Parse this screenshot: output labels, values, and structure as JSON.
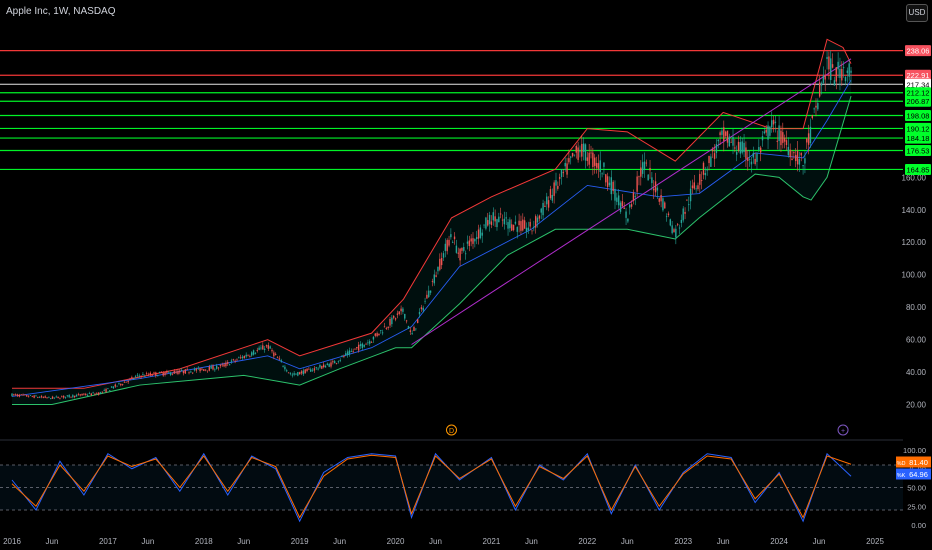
{
  "window": {
    "title": "Apple Inc, 1W, NASDAQ",
    "currency_button": "USD"
  },
  "colors": {
    "background": "#000000",
    "candle_up": "#26a69a",
    "candle_down": "#ef5350",
    "bb_upper": "#ff3b3b",
    "bb_lower": "#2ecc71",
    "bb_basis": "#2962ff",
    "trendline": "#b82fd6",
    "resistance": "#ff3b3b",
    "support": "#00ff2a",
    "stoch_k": "#2962ff",
    "stoch_d": "#ff6d00"
  },
  "events": [
    {
      "kind": "dividend",
      "label": "D",
      "date": "2020-08-01"
    },
    {
      "kind": "earnings",
      "label": "+",
      "date": "2024-09-20"
    }
  ],
  "chart_data": [
    {
      "type": "line",
      "title": "Apple Inc, 1W, NASDAQ",
      "ylim": [
        0,
        252
      ],
      "y_ticks": [
        "20.00",
        "40.00",
        "60.00",
        "80.00",
        "100.00",
        "120.00",
        "140.00",
        "160.00"
      ],
      "x_ticks": [
        "2016",
        "Jun",
        "2017",
        "Jun",
        "2018",
        "Jun",
        "2019",
        "Jun",
        "2020",
        "Jun",
        "2021",
        "Jun",
        "2022",
        "Jun",
        "2023",
        "Jun",
        "2024",
        "Jun",
        "2025"
      ],
      "x_tick_dates": [
        "2016-01",
        "2016-06",
        "2017-01",
        "2017-06",
        "2018-01",
        "2018-06",
        "2019-01",
        "2019-06",
        "2020-01",
        "2020-06",
        "2021-01",
        "2021-06",
        "2022-01",
        "2022-06",
        "2023-01",
        "2023-06",
        "2024-01",
        "2024-06",
        "2025-01"
      ],
      "series": [
        {
          "kind": "price",
          "x": [
            "2016-01",
            "2016-06",
            "2016-12",
            "2017-05",
            "2017-10",
            "2018-03",
            "2018-09",
            "2018-12",
            "2019-05",
            "2019-10",
            "2020-02",
            "2020-03",
            "2020-08",
            "2020-09",
            "2021-01",
            "2021-06",
            "2021-12",
            "2022-03",
            "2022-06",
            "2022-08",
            "2022-10",
            "2022-12",
            "2023-02",
            "2023-06",
            "2023-08",
            "2023-10",
            "2023-12",
            "2024-02",
            "2024-04",
            "2024-06",
            "2024-07",
            "2024-08",
            "2024-09",
            "2024-10"
          ],
          "y": [
            26,
            24,
            27,
            38,
            40,
            43,
            56,
            38,
            45,
            60,
            78,
            62,
            125,
            112,
            135,
            128,
            178,
            165,
            135,
            168,
            150,
            125,
            150,
            185,
            178,
            170,
            192,
            180,
            168,
            210,
            230,
            222,
            228,
            225
          ]
        },
        {
          "kind": "bollinger-upper",
          "x": [
            "2016-01",
            "2016-10",
            "2017-10",
            "2018-09",
            "2019-01",
            "2019-10",
            "2020-02",
            "2020-08",
            "2021-01",
            "2021-09",
            "2022-01",
            "2022-06",
            "2022-12",
            "2023-06",
            "2023-12",
            "2024-04",
            "2024-07",
            "2024-09",
            "2024-10"
          ],
          "y": [
            30,
            30,
            42,
            60,
            50,
            64,
            85,
            135,
            148,
            165,
            190,
            188,
            170,
            200,
            190,
            190,
            245,
            240,
            230
          ]
        },
        {
          "kind": "bollinger-lower",
          "x": [
            "2016-01",
            "2016-06",
            "2017-05",
            "2018-06",
            "2019-01",
            "2019-06",
            "2020-01",
            "2020-03",
            "2020-09",
            "2021-03",
            "2021-09",
            "2022-06",
            "2022-12",
            "2023-03",
            "2023-10",
            "2024-01",
            "2024-04",
            "2024-05",
            "2024-07",
            "2024-10"
          ],
          "y": [
            20,
            20,
            32,
            38,
            32,
            42,
            55,
            55,
            82,
            112,
            128,
            128,
            122,
            135,
            162,
            160,
            148,
            146,
            160,
            210
          ]
        },
        {
          "kind": "bollinger-basis",
          "x": [
            "2016-01",
            "2017-05",
            "2018-09",
            "2019-01",
            "2019-10",
            "2020-03",
            "2020-09",
            "2021-06",
            "2022-01",
            "2022-10",
            "2023-03",
            "2023-10",
            "2024-04",
            "2024-07",
            "2024-10"
          ],
          "y": [
            25,
            36,
            50,
            42,
            55,
            68,
            105,
            128,
            155,
            148,
            150,
            175,
            172,
            195,
            220
          ]
        },
        {
          "kind": "trendline",
          "x": [
            "2020-03",
            "2024-10"
          ],
          "y": [
            57,
            233
          ]
        }
      ],
      "price_levels": [
        {
          "label": "238.06",
          "value": 238.06,
          "kind": "resistance"
        },
        {
          "label": "222.91",
          "value": 222.91,
          "kind": "resistance"
        },
        {
          "label": "217.34",
          "value": 217.34,
          "kind": "current"
        },
        {
          "label": "212.12",
          "value": 212.12,
          "kind": "support"
        },
        {
          "label": "206.87",
          "value": 206.87,
          "kind": "support"
        },
        {
          "label": "198.08",
          "value": 198.08,
          "kind": "support"
        },
        {
          "label": "190.12",
          "value": 190.12,
          "kind": "support"
        },
        {
          "label": "184.18",
          "value": 184.18,
          "kind": "support"
        },
        {
          "label": "176.53",
          "value": 176.53,
          "kind": "support"
        },
        {
          "label": "164.85",
          "value": 164.85,
          "kind": "support"
        }
      ]
    },
    {
      "type": "line",
      "ylim": [
        0,
        100
      ],
      "y_ticks": [
        "0.00",
        "25.00",
        "50.00",
        "75.00",
        "100.00"
      ],
      "reference_lines": [
        80,
        50,
        20
      ],
      "legend": [
        {
          "label": "%D",
          "value": "81.40"
        },
        {
          "label": "%K",
          "value": "64.96"
        }
      ],
      "series": [
        {
          "kind": "stochastic-k",
          "x": [
            "2016-01",
            "2016-04",
            "2016-07",
            "2016-10",
            "2017-01",
            "2017-04",
            "2017-07",
            "2017-10",
            "2018-01",
            "2018-04",
            "2018-07",
            "2018-10",
            "2019-01",
            "2019-04",
            "2019-07",
            "2019-10",
            "2020-01",
            "2020-03",
            "2020-06",
            "2020-09",
            "2021-01",
            "2021-04",
            "2021-07",
            "2021-10",
            "2022-01",
            "2022-04",
            "2022-07",
            "2022-10",
            "2023-01",
            "2023-04",
            "2023-07",
            "2023-10",
            "2024-01",
            "2024-04",
            "2024-07",
            "2024-10"
          ],
          "y": [
            60,
            20,
            85,
            40,
            95,
            75,
            90,
            45,
            95,
            40,
            92,
            75,
            5,
            70,
            90,
            95,
            92,
            10,
            95,
            60,
            90,
            20,
            80,
            60,
            95,
            15,
            80,
            20,
            70,
            95,
            90,
            30,
            70,
            5,
            95,
            65
          ]
        },
        {
          "kind": "stochastic-d",
          "x": [
            "2016-01",
            "2016-04",
            "2016-07",
            "2016-10",
            "2017-01",
            "2017-04",
            "2017-07",
            "2017-10",
            "2018-01",
            "2018-04",
            "2018-07",
            "2018-10",
            "2019-01",
            "2019-04",
            "2019-07",
            "2019-10",
            "2020-01",
            "2020-03",
            "2020-06",
            "2020-09",
            "2021-01",
            "2021-04",
            "2021-07",
            "2021-10",
            "2022-01",
            "2022-04",
            "2022-07",
            "2022-10",
            "2023-01",
            "2023-04",
            "2023-07",
            "2023-10",
            "2024-01",
            "2024-04",
            "2024-07",
            "2024-10"
          ],
          "y": [
            55,
            25,
            80,
            45,
            92,
            78,
            88,
            50,
            92,
            45,
            90,
            78,
            10,
            65,
            88,
            93,
            90,
            15,
            92,
            62,
            88,
            25,
            78,
            62,
            92,
            20,
            78,
            25,
            68,
            92,
            88,
            35,
            68,
            10,
            92,
            81
          ]
        }
      ]
    }
  ]
}
